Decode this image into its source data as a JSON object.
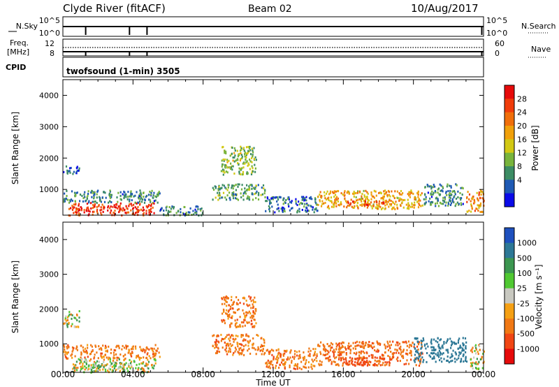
{
  "header": {
    "station": "Clyde River (fitACF)",
    "beam": "Beam 02",
    "date": "10/Aug/2017"
  },
  "summary": {
    "nsky_label": "N.Sky",
    "nsky_ticks": [
      "10^5",
      "10^0"
    ],
    "nsearch_label": "N.Search",
    "nsearch_ticks": [
      "10^5",
      "10^0"
    ],
    "freq_label_line1": "Freq.",
    "freq_label_line2": "[MHz]",
    "freq_ticks": [
      "12",
      "8"
    ],
    "nave_label": "Nave",
    "nave_ticks": [
      "60",
      "0"
    ],
    "cpid_label": "CPID",
    "cpid_value": "twofsound (1-min) 3505"
  },
  "colors": {
    "power": [
      "#0a0ae8",
      "#1f5ab4",
      "#3c8c64",
      "#78b43c",
      "#d2c814",
      "#f0a00a",
      "#f06e0a",
      "#f03c0a",
      "#e60a0a"
    ],
    "velocity_neg": [
      "#e60a0a",
      "#f04614",
      "#f07814",
      "#f5a014"
    ],
    "velocity_zero": "#c8c8c0",
    "velocity_pos": [
      "#50c832",
      "#3c9650",
      "#2d7896",
      "#1e50be"
    ]
  },
  "chart_data": [
    {
      "type": "heatmap",
      "name": "power",
      "xlabel": "",
      "ylabel": "Slant Range [km]",
      "xlim_hours": [
        0,
        24
      ],
      "ylim": [
        180,
        4500
      ],
      "yticks": [
        1000,
        2000,
        3000,
        4000
      ],
      "xticks_hours": [
        0,
        4,
        8,
        12,
        16,
        20,
        24
      ],
      "colorbar": {
        "label": "Power [dB]",
        "ticks": [
          "28",
          "24",
          "20",
          "16",
          "12",
          "8",
          "4"
        ],
        "range": [
          0,
          30
        ]
      },
      "regions": [
        {
          "t": [
            0.0,
            0.9
          ],
          "r": [
            1500,
            1800
          ],
          "v": 5
        },
        {
          "t": [
            0.0,
            5.5
          ],
          "r": [
            600,
            1000
          ],
          "v": 8
        },
        {
          "t": [
            0.3,
            5.3
          ],
          "r": [
            200,
            600
          ],
          "v": 26
        },
        {
          "t": [
            5.5,
            8.0
          ],
          "r": [
            200,
            500
          ],
          "v": 8
        },
        {
          "t": [
            8.5,
            11.5
          ],
          "r": [
            700,
            1200
          ],
          "v": 10
        },
        {
          "t": [
            9.0,
            11.0
          ],
          "r": [
            1500,
            2400
          ],
          "v": 12
        },
        {
          "t": [
            11.5,
            14.5
          ],
          "r": [
            300,
            800
          ],
          "v": 6
        },
        {
          "t": [
            14.5,
            20.5
          ],
          "r": [
            400,
            1000
          ],
          "v": 18
        },
        {
          "t": [
            16.0,
            18.3
          ],
          "r": [
            500,
            650
          ],
          "v": 24
        },
        {
          "t": [
            20.5,
            22.8
          ],
          "r": [
            500,
            1200
          ],
          "v": 8
        },
        {
          "t": [
            23.0,
            24.0
          ],
          "r": [
            300,
            1000
          ],
          "v": 20
        }
      ]
    },
    {
      "type": "heatmap",
      "name": "velocity",
      "xlabel": "Time UT",
      "ylabel": "Slant Range [km]",
      "xlim_hours": [
        0,
        24
      ],
      "ylim": [
        180,
        4500
      ],
      "yticks": [
        1000,
        2000,
        3000,
        4000
      ],
      "xticks": [
        "00:00",
        "04:00",
        "08:00",
        "12:00",
        "16:00",
        "20:00",
        "00:00"
      ],
      "colorbar": {
        "label": "Velocity [m s⁻¹]",
        "ticks": [
          "1000",
          "500",
          "100",
          "25",
          "-25",
          "-100",
          "-500",
          "-1000"
        ],
        "range": [
          -1200,
          1200
        ]
      },
      "regions": [
        {
          "t": [
            0.0,
            0.9
          ],
          "r": [
            1500,
            2000
          ],
          "v": 0
        },
        {
          "t": [
            0.0,
            5.5
          ],
          "r": [
            600,
            1000
          ],
          "v": -200
        },
        {
          "t": [
            0.5,
            5.3
          ],
          "r": [
            200,
            600
          ],
          "v": 0
        },
        {
          "t": [
            1.5,
            3.5
          ],
          "r": [
            200,
            500
          ],
          "v": 60
        },
        {
          "t": [
            8.5,
            11.5
          ],
          "r": [
            700,
            1300
          ],
          "v": -200
        },
        {
          "t": [
            9.0,
            11.0
          ],
          "r": [
            1500,
            2400
          ],
          "v": -200
        },
        {
          "t": [
            11.5,
            14.5
          ],
          "r": [
            300,
            900
          ],
          "v": -200
        },
        {
          "t": [
            14.5,
            20.5
          ],
          "r": [
            400,
            1100
          ],
          "v": -250
        },
        {
          "t": [
            16.0,
            18.3
          ],
          "r": [
            400,
            650
          ],
          "v": -500
        },
        {
          "t": [
            20.0,
            23.0
          ],
          "r": [
            500,
            1200
          ],
          "v": 600
        },
        {
          "t": [
            23.2,
            24.0
          ],
          "r": [
            300,
            1000
          ],
          "v": 0
        }
      ]
    }
  ]
}
